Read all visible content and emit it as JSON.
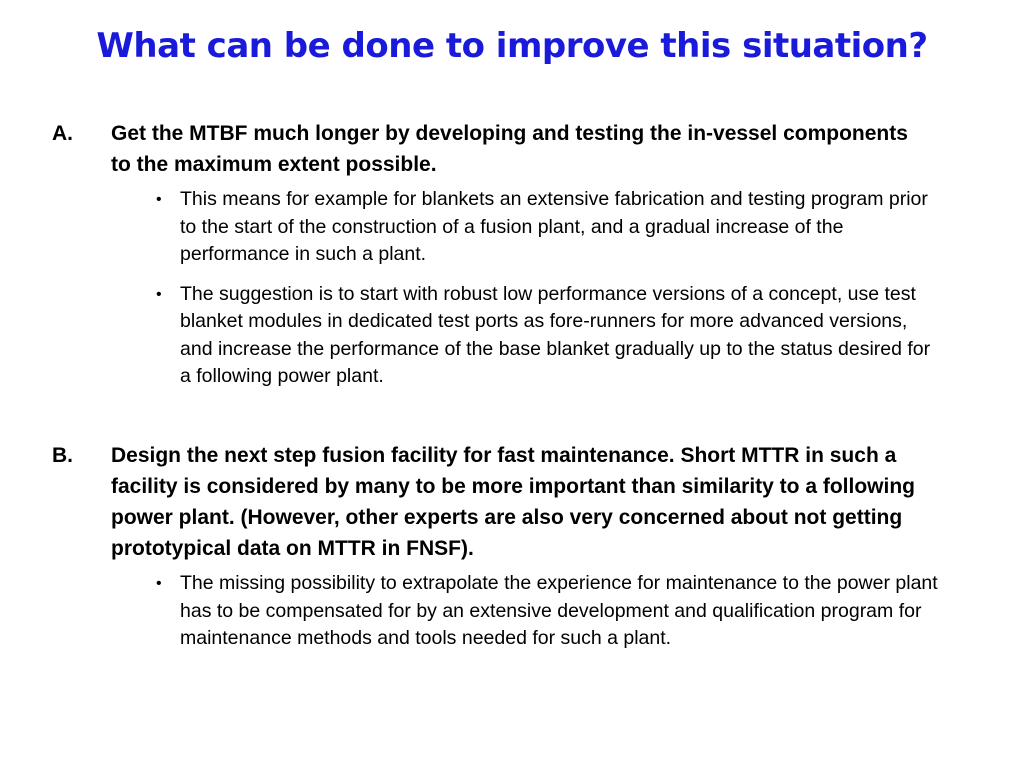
{
  "slide": {
    "title": "What can be done to improve this situation?",
    "title_color": "#1a1adb"
  },
  "items": [
    {
      "marker": "A.",
      "text": "Get the MTBF much longer by developing and testing the in-vessel components to the maximum extent possible.",
      "bullets": [
        "This means for example for blankets an extensive fabrication and testing program prior to the start of the construction of a fusion plant, and a gradual increase of the performance in such a plant.",
        "The suggestion is to start with robust low performance versions of a concept, use test blanket modules in dedicated test ports as fore-runners for more advanced versions, and increase the performance of the base blanket gradually up to the status desired for a following power plant."
      ]
    },
    {
      "marker": "B.",
      "text": "Design the next step fusion facility for fast maintenance. Short MTTR in such a facility is considered by many to be more important than similarity to a following power plant. (However, other experts are also very concerned about not getting prototypical data on MTTR in FNSF).",
      "bullets": [
        "The missing possibility to extrapolate the experience for maintenance to the power plant has to be compensated for by an extensive development and qualification program for maintenance methods and tools needed for such a plant."
      ]
    }
  ],
  "bullet_glyph": "•"
}
